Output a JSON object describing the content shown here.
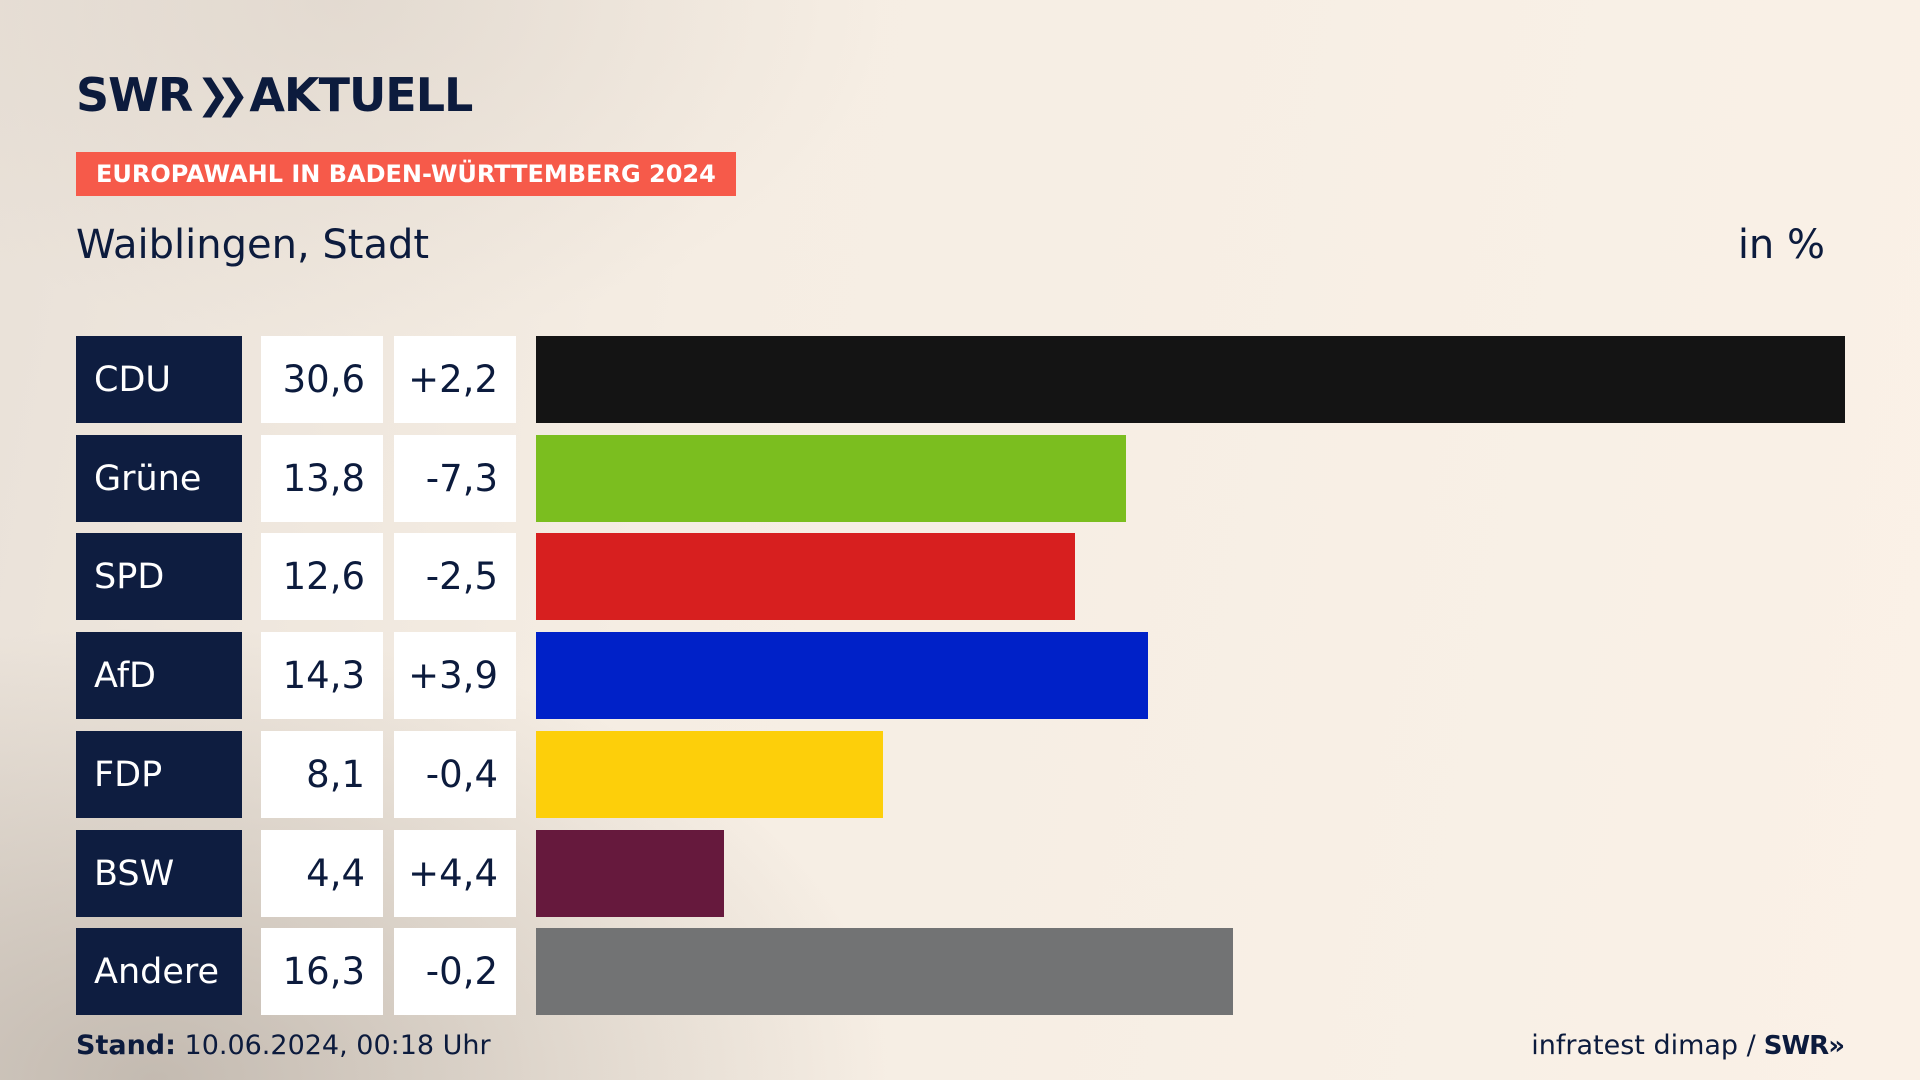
{
  "header": {
    "logo_text_left": "SWR",
    "logo_chevrons": "»",
    "logo_text_right": "AKTUELL",
    "badge": "EUROPAWAHL IN BADEN-WÜRTTEMBERG 2024",
    "region": "Waiblingen, Stadt",
    "unit": "in %"
  },
  "footer": {
    "stand_label": "Stand:",
    "stand_value": "10.06.2024, 00:18 Uhr",
    "source": "infratest dimap /",
    "source_logo": "SWR»"
  },
  "colors": {
    "navy": "#0e1d40",
    "badge": "#f65a4a"
  },
  "chart_data": {
    "type": "bar",
    "orientation": "horizontal",
    "categories": [
      "CDU",
      "Grüne",
      "SPD",
      "AfD",
      "FDP",
      "BSW",
      "Andere"
    ],
    "values_display": [
      "30,6",
      "13,8",
      "12,6",
      "14,3",
      "8,1",
      "4,4",
      "16,3"
    ],
    "diffs_display": [
      "+2,2",
      "-7,3",
      "-2,5",
      "+3,9",
      "-0,4",
      "+4,4",
      "-0,2"
    ],
    "values": [
      30.6,
      13.8,
      12.6,
      14.3,
      8.1,
      4.4,
      16.3
    ],
    "diffs": [
      2.2,
      -7.3,
      -2.5,
      3.9,
      -0.4,
      4.4,
      -0.2
    ],
    "colors": [
      "#141414",
      "#7bbe1f",
      "#d71f1f",
      "#0021c8",
      "#fdcf0a",
      "#66193d",
      "#727374"
    ],
    "xlim": [
      0,
      30.6
    ]
  }
}
